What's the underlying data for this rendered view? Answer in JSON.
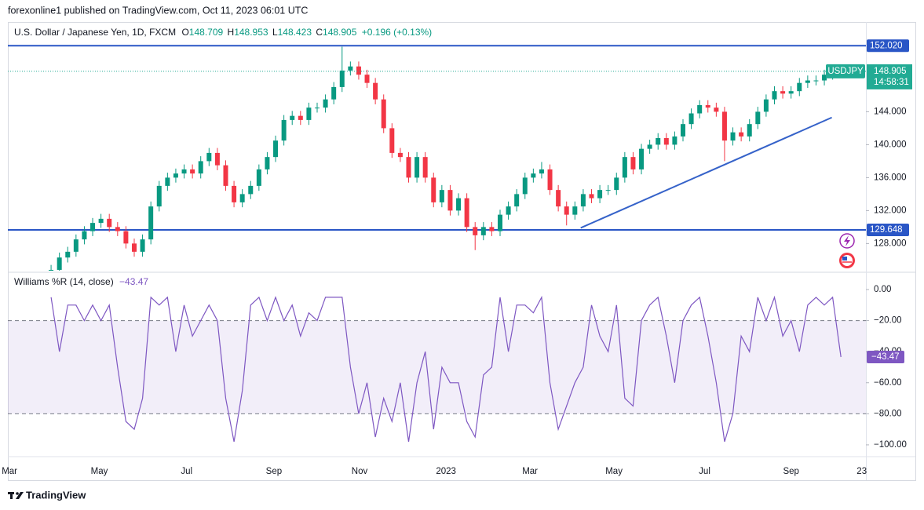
{
  "page": {
    "published": "forexonline1 published on TradingView.com, Oct 11, 2023 06:01 UTC",
    "brand": "TradingView"
  },
  "chart_data": [
    {
      "type": "candlestick",
      "title": "U.S. Dollar / Japanese Yen, 1D, FXCM",
      "ohlc_legend": [
        {
          "key": "O",
          "value": "148.709"
        },
        {
          "key": "H",
          "value": "148.953"
        },
        {
          "key": "L",
          "value": "148.423"
        },
        {
          "key": "C",
          "value": "148.905"
        }
      ],
      "change": "+0.196 (+0.13%)",
      "up_color": "#089981",
      "down_color": "#f23645",
      "open": [
        124.0,
        124.8,
        126.3,
        127.0,
        128.5,
        129.5,
        130.5,
        131.0,
        130.0,
        129.5,
        128.0,
        127.0,
        128.5,
        132.5,
        135.0,
        136.0,
        136.5,
        137.0,
        136.5,
        138.0,
        139.0,
        137.5,
        135.0,
        133.0,
        134.0,
        135.0,
        137.0,
        138.5,
        140.5,
        143.0,
        143.5,
        143.0,
        144.5,
        144.5,
        145.5,
        147.0,
        149.0,
        149.5,
        148.5,
        147.5,
        145.5,
        142.0,
        139.0,
        138.5,
        136.0,
        138.5,
        136.0,
        133.0,
        134.5,
        132.0,
        133.5,
        130.0,
        129.0,
        130.0,
        129.5,
        131.5,
        132.5,
        134.0,
        136.0,
        136.5,
        137.0,
        134.5,
        132.5,
        131.5,
        132.5,
        134.0,
        133.5,
        134.5,
        134.5,
        136.0,
        138.5,
        137.0,
        139.5,
        140.0,
        140.8,
        140.0,
        141.0,
        142.5,
        143.8,
        144.8,
        144.5,
        144.0,
        140.5,
        141.5,
        141.0,
        142.5,
        144.0,
        145.5,
        146.5,
        146.2,
        146.5,
        147.5,
        147.8,
        147.8,
        148.5,
        148.709
      ],
      "high": [
        125.4,
        126.9,
        127.6,
        129.1,
        130.1,
        131.1,
        131.6,
        131.6,
        130.6,
        130.1,
        128.6,
        129.1,
        133.1,
        135.6,
        136.6,
        137.1,
        137.6,
        137.6,
        138.6,
        139.6,
        139.6,
        138.1,
        135.6,
        134.6,
        135.6,
        137.6,
        139.1,
        141.1,
        143.6,
        144.1,
        144.1,
        145.1,
        145.1,
        146.1,
        147.6,
        151.9,
        150.1,
        150.1,
        149.1,
        148.1,
        146.1,
        142.6,
        139.6,
        139.1,
        139.1,
        139.1,
        136.6,
        135.1,
        135.1,
        134.1,
        134.1,
        130.6,
        130.6,
        130.6,
        132.1,
        133.1,
        134.6,
        136.6,
        137.1,
        137.9,
        137.6,
        135.1,
        133.1,
        133.1,
        134.6,
        134.6,
        135.1,
        135.1,
        136.6,
        139.1,
        139.1,
        140.1,
        140.6,
        141.4,
        141.4,
        141.6,
        143.1,
        144.4,
        145.4,
        145.4,
        145.1,
        144.6,
        142.1,
        142.1,
        143.1,
        144.6,
        146.1,
        147.1,
        147.1,
        147.1,
        148.1,
        148.4,
        148.4,
        149.1,
        149.7,
        148.953
      ],
      "low": [
        123.4,
        124.2,
        125.7,
        126.4,
        127.9,
        128.9,
        129.9,
        129.4,
        128.9,
        127.4,
        126.4,
        126.4,
        127.9,
        131.9,
        134.4,
        135.4,
        135.9,
        135.9,
        135.9,
        137.4,
        136.9,
        134.4,
        132.4,
        132.4,
        133.4,
        134.4,
        136.4,
        137.9,
        139.9,
        142.4,
        142.4,
        142.4,
        143.9,
        143.9,
        144.9,
        146.4,
        148.4,
        147.9,
        146.9,
        144.9,
        141.4,
        138.4,
        137.9,
        135.4,
        135.4,
        135.4,
        132.4,
        132.4,
        131.4,
        131.4,
        129.4,
        127.2,
        128.4,
        128.9,
        128.9,
        130.9,
        131.9,
        133.4,
        135.4,
        135.9,
        133.9,
        131.9,
        130.2,
        130.9,
        131.9,
        132.9,
        132.9,
        133.9,
        133.9,
        135.4,
        136.4,
        136.4,
        138.9,
        139.4,
        139.4,
        139.4,
        140.4,
        141.9,
        143.2,
        143.9,
        143.4,
        138.0,
        139.9,
        140.4,
        140.4,
        141.9,
        143.4,
        144.9,
        145.6,
        145.6,
        145.9,
        146.9,
        147.2,
        147.2,
        147.9,
        148.423
      ],
      "close": [
        124.8,
        126.3,
        127.0,
        128.5,
        129.5,
        130.5,
        131.0,
        130.0,
        129.5,
        128.0,
        127.0,
        128.5,
        132.5,
        135.0,
        136.0,
        136.5,
        137.0,
        136.5,
        138.0,
        139.0,
        137.5,
        135.0,
        133.0,
        134.0,
        135.0,
        137.0,
        138.5,
        140.5,
        143.0,
        143.5,
        143.0,
        144.5,
        144.5,
        145.5,
        147.0,
        149.0,
        149.5,
        148.5,
        147.5,
        145.5,
        142.0,
        139.0,
        138.5,
        136.0,
        138.5,
        136.0,
        133.0,
        134.5,
        132.0,
        133.5,
        130.0,
        129.0,
        130.0,
        129.5,
        131.5,
        132.5,
        134.0,
        136.0,
        136.5,
        137.0,
        134.5,
        132.5,
        131.5,
        132.5,
        134.0,
        133.5,
        134.5,
        134.5,
        136.0,
        138.5,
        137.0,
        139.5,
        140.0,
        140.8,
        140.0,
        141.0,
        142.5,
        143.8,
        144.8,
        144.5,
        144.0,
        140.5,
        141.5,
        141.0,
        142.5,
        144.0,
        145.5,
        146.5,
        146.2,
        146.5,
        147.5,
        147.8,
        147.8,
        148.5,
        149.0,
        148.905
      ],
      "last_price": {
        "symbol": "USDJPY",
        "price": "148.905",
        "countdown": "14:58:31",
        "color": "#22ab94"
      },
      "xlim": [
        -5.2,
        98
      ],
      "xticks": [
        {
          "value": -5,
          "label": "Mar"
        },
        {
          "value": 5.8,
          "label": "May"
        },
        {
          "value": 16.3,
          "label": "Jul"
        },
        {
          "value": 26.8,
          "label": "Sep"
        },
        {
          "value": 37.1,
          "label": "Nov"
        },
        {
          "value": 47.5,
          "label": "2023"
        },
        {
          "value": 57.6,
          "label": "Mar"
        },
        {
          "value": 67.7,
          "label": "May"
        },
        {
          "value": 78.6,
          "label": "Jul"
        },
        {
          "value": 89,
          "label": "Sep"
        },
        {
          "value": 97.5,
          "label": "23"
        }
      ],
      "ylim": [
        124.7,
        154.9
      ],
      "yticks": [
        {
          "value": 128,
          "label": "128.000"
        },
        {
          "value": 132,
          "label": "132.000"
        },
        {
          "value": 136,
          "label": "136.000"
        },
        {
          "value": 140,
          "label": "140.000"
        },
        {
          "value": 144,
          "label": "144.000"
        }
      ],
      "levels": [
        {
          "value": 152.02,
          "label": "152.020"
        },
        {
          "value": 129.648,
          "label": "129.648"
        }
      ],
      "level_color": "#2a56c6",
      "trendline": {
        "x": [
          63.7,
          93.9
        ],
        "y": [
          129.9,
          143.3
        ],
        "color": "#3562c9"
      }
    },
    {
      "type": "line",
      "title": "Williams %R (14, close)",
      "last_label": "−43.47",
      "color": "#7e57c2",
      "values": [
        -5,
        -40,
        -10,
        -10,
        -20,
        -10,
        -20,
        -10,
        -50,
        -85,
        -90,
        -70,
        -5,
        -10,
        -5,
        -40,
        -10,
        -30,
        -20,
        -10,
        -20,
        -70,
        -98,
        -65,
        -10,
        -5,
        -20,
        -5,
        -20,
        -10,
        -30,
        -15,
        -20,
        -5,
        -5,
        -5,
        -50,
        -80,
        -60,
        -95,
        -70,
        -85,
        -60,
        -98,
        -60,
        -40,
        -90,
        -50,
        -60,
        -60,
        -85,
        -95,
        -55,
        -50,
        -5,
        -40,
        -10,
        -10,
        -15,
        -5,
        -60,
        -90,
        -75,
        -60,
        -50,
        -10,
        -30,
        -40,
        -10,
        -70,
        -75,
        -20,
        -10,
        -5,
        -30,
        -60,
        -20,
        -10,
        -5,
        -30,
        -60,
        -98,
        -80,
        -30,
        -40,
        -5,
        -20,
        -5,
        -30,
        -20,
        -40,
        -10,
        -5,
        -10,
        -5,
        -43.47
      ],
      "ylim": [
        -106.6,
        9.6
      ],
      "yticks": [
        {
          "value": 0,
          "label": "0.00"
        },
        {
          "value": -20,
          "label": "−20.00"
        },
        {
          "value": -40,
          "label": "−40.00"
        },
        {
          "value": -60,
          "label": "−60.00"
        },
        {
          "value": -80,
          "label": "−80.00"
        },
        {
          "value": -100,
          "label": "−100.00"
        }
      ],
      "bands": [
        -20,
        -80
      ]
    }
  ]
}
